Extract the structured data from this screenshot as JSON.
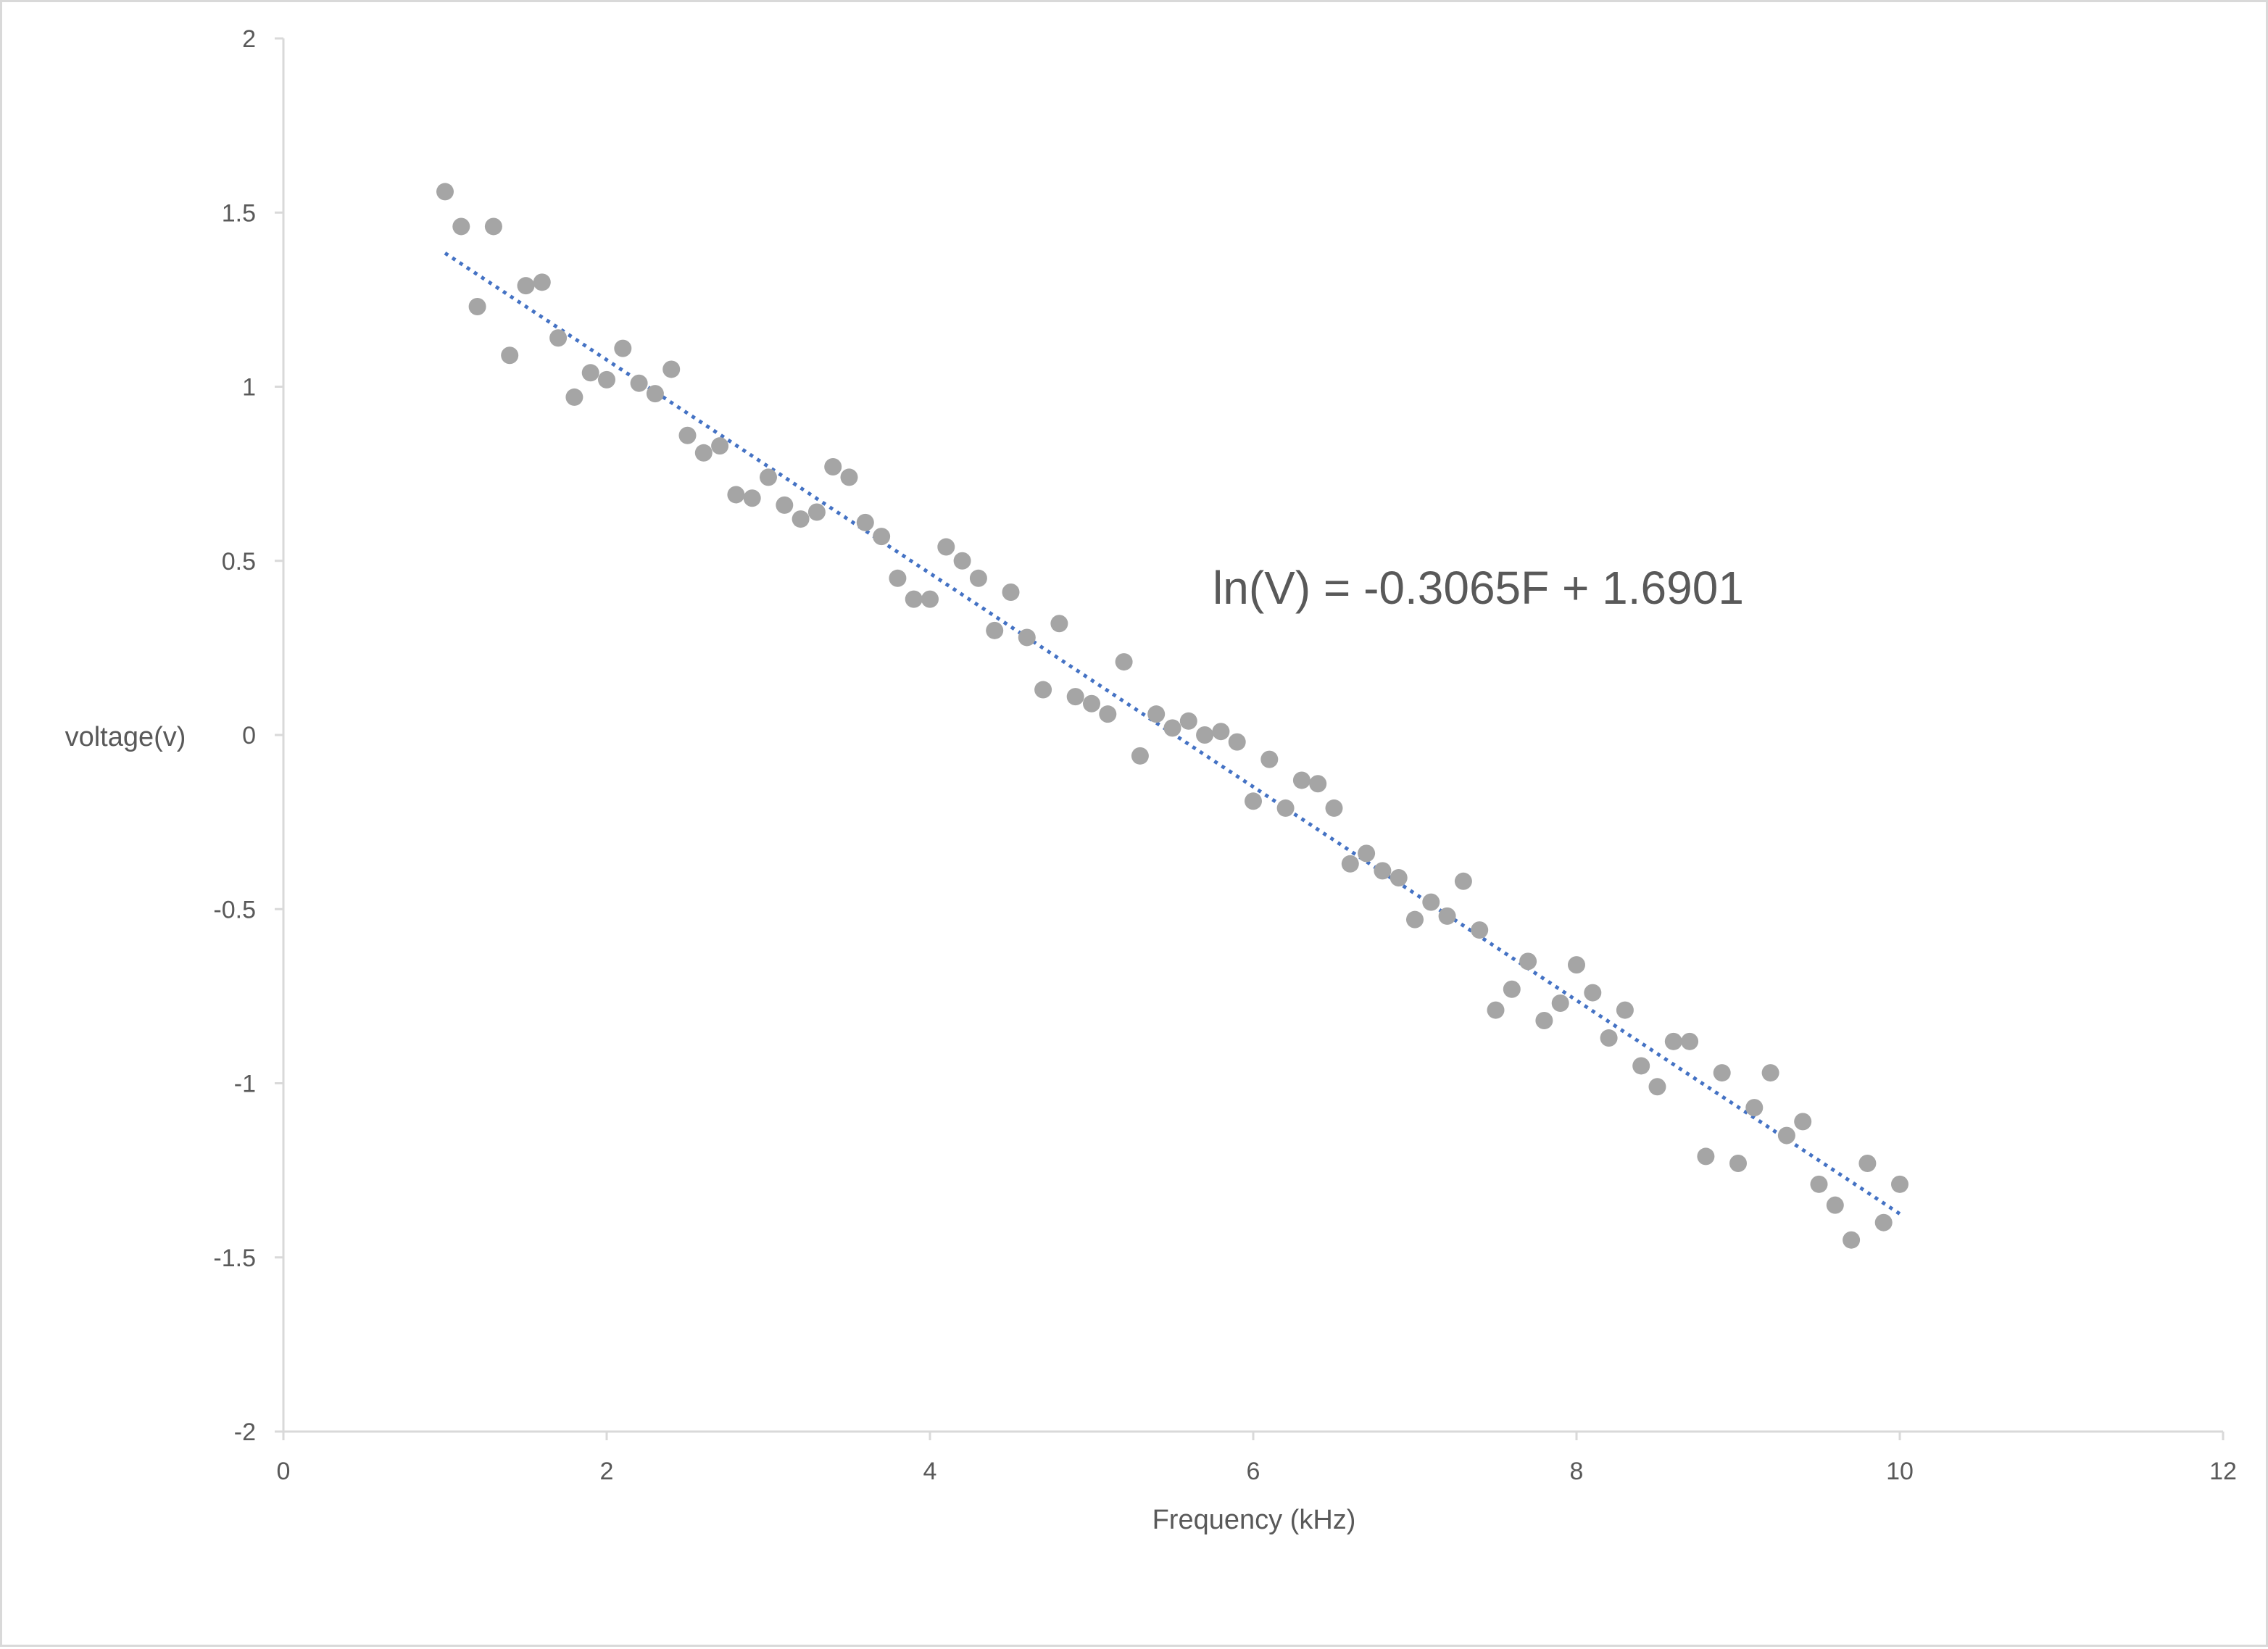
{
  "chart_data": {
    "type": "scatter",
    "title": "",
    "xlabel": "Frequency (kHz)",
    "ylabel": "voltage(v)",
    "xlim": [
      0,
      12
    ],
    "ylim": [
      -2,
      2
    ],
    "x_ticks": [
      0,
      2,
      4,
      6,
      8,
      10,
      12
    ],
    "y_ticks": [
      2,
      1.5,
      1,
      0.5,
      0,
      -0.5,
      -1,
      -1.5,
      -2
    ],
    "grid": false,
    "legend": "none",
    "point_color": "#a5a5a5",
    "trendline_color": "#4472c4",
    "axis_color": "#d9d9d9",
    "text_color": "#595959",
    "series": [
      {
        "marker": "circle",
        "x": [
          1.0,
          1.1,
          1.2,
          1.3,
          1.4,
          1.5,
          1.6,
          1.7,
          1.8,
          1.9,
          2.0,
          2.1,
          2.2,
          2.3,
          2.4,
          2.5,
          2.6,
          2.7,
          2.8,
          2.9,
          3.0,
          3.1,
          3.2,
          3.3,
          3.4,
          3.5,
          3.6,
          3.7,
          3.8,
          3.9,
          4.0,
          4.1,
          4.2,
          4.3,
          4.4,
          4.5,
          4.6,
          4.7,
          4.8,
          4.9,
          5.0,
          5.1,
          5.2,
          5.3,
          5.4,
          5.5,
          5.6,
          5.7,
          5.8,
          5.9,
          6.0,
          6.1,
          6.2,
          6.3,
          6.4,
          6.5,
          6.6,
          6.7,
          6.8,
          6.9,
          7.0,
          7.1,
          7.2,
          7.3,
          7.4,
          7.5,
          7.6,
          7.7,
          7.8,
          7.9,
          8.0,
          8.1,
          8.2,
          8.3,
          8.4,
          8.5,
          8.6,
          8.7,
          8.8,
          8.9,
          9.0,
          9.1,
          9.2,
          9.3,
          9.4,
          9.5,
          9.6,
          9.7,
          9.8,
          9.9,
          10.0
        ],
        "y": [
          1.56,
          1.46,
          1.23,
          1.46,
          1.09,
          1.29,
          1.3,
          1.14,
          0.97,
          1.04,
          1.02,
          1.11,
          1.01,
          0.98,
          1.05,
          0.86,
          0.81,
          0.83,
          0.69,
          0.68,
          0.74,
          0.66,
          0.62,
          0.64,
          0.77,
          0.74,
          0.61,
          0.57,
          0.45,
          0.39,
          0.39,
          0.54,
          0.5,
          0.45,
          0.3,
          0.41,
          0.28,
          0.13,
          0.32,
          0.11,
          0.09,
          0.06,
          0.21,
          -0.06,
          0.06,
          0.02,
          0.04,
          0.0,
          0.01,
          -0.02,
          -0.19,
          -0.07,
          -0.21,
          -0.13,
          -0.14,
          -0.21,
          -0.37,
          -0.34,
          -0.39,
          -0.41,
          -0.53,
          -0.48,
          -0.52,
          -0.42,
          -0.56,
          -0.79,
          -0.73,
          -0.65,
          -0.82,
          -0.77,
          -0.66,
          -0.74,
          -0.87,
          -0.79,
          -0.95,
          -1.01,
          -0.88,
          -0.88,
          -1.21,
          -0.97,
          -1.23,
          -1.07,
          -0.97,
          -1.15,
          -1.11,
          -1.29,
          -1.35,
          -1.45,
          -1.23,
          -1.4,
          -1.29
        ]
      }
    ],
    "trendline": {
      "type": "linear",
      "style": "dotted",
      "slope": -0.3065,
      "intercept": 1.6901,
      "x_range": [
        1.0,
        10.0
      ]
    },
    "annotation": "ln(V) = -0.3065F + 1.6901"
  }
}
